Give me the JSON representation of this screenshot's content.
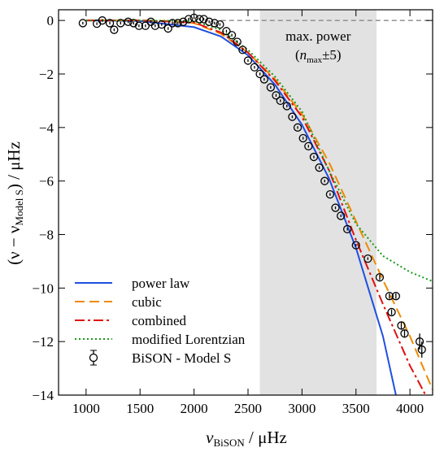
{
  "chart_data": {
    "type": "line",
    "xlabel": {
      "main": "ν",
      "sub": "BiSON",
      "rest": " / μHz"
    },
    "ylabel": {
      "start": "(ν − ν",
      "sub": "Model S",
      "rest": ") / μHz"
    },
    "xlim": [
      745,
      4210
    ],
    "ylim": [
      -14,
      0.4
    ],
    "xticks": [
      1000,
      1500,
      2000,
      2500,
      3000,
      3500,
      4000
    ],
    "yticks": [
      {
        "value": 0,
        "label": "0"
      },
      {
        "value": -2,
        "label": "−2"
      },
      {
        "value": -4,
        "label": "−4"
      },
      {
        "value": -6,
        "label": "−6"
      },
      {
        "value": -8,
        "label": "−8"
      },
      {
        "value": -10,
        "label": "−10"
      },
      {
        "value": -12,
        "label": "−12"
      },
      {
        "value": -14,
        "label": "−14"
      }
    ],
    "shade": {
      "x": [
        2610,
        3690
      ],
      "color": "#e2e2e2"
    },
    "annotation": {
      "line1": "max. power",
      "open": "(",
      "main": "n",
      "sub": "max",
      "rest": "±5)"
    },
    "hline": {
      "y": 0,
      "x_start": 2250,
      "color": "#888888"
    },
    "legend": "lower left",
    "series": [
      {
        "name": "power law",
        "color": "#1f4fe0",
        "style": "solid",
        "x": [
          1000,
          1500,
          2000,
          2250,
          2500,
          2750,
          3000,
          3250,
          3500,
          3750,
          3870
        ],
        "values": [
          0,
          -0.02,
          -0.25,
          -0.6,
          -1.3,
          -2.4,
          -3.9,
          -5.9,
          -8.5,
          -11.8,
          -14
        ]
      },
      {
        "name": "cubic",
        "color": "#f08a00",
        "style": "dashed",
        "x": [
          1000,
          1500,
          1800,
          2000,
          2250,
          2500,
          2750,
          3000,
          3250,
          3500,
          3750,
          4000,
          4210
        ],
        "values": [
          0,
          0,
          -0.02,
          -0.1,
          -0.5,
          -1.2,
          -2.2,
          -3.5,
          -5.3,
          -7.5,
          -9.7,
          -11.8,
          -13.8
        ]
      },
      {
        "name": "combined",
        "color": "#e01010",
        "style": "dashdot",
        "x": [
          1000,
          1500,
          2000,
          2250,
          2500,
          2750,
          3000,
          3250,
          3500,
          3750,
          4000,
          4145
        ],
        "values": [
          0,
          0,
          -0.08,
          -0.45,
          -1.2,
          -2.25,
          -3.6,
          -5.6,
          -8.2,
          -10.6,
          -12.9,
          -14
        ]
      },
      {
        "name": "modified Lorentzian",
        "color": "#1a9a1a",
        "style": "dotted",
        "x": [
          1000,
          1500,
          2000,
          2250,
          2500,
          2750,
          3000,
          3250,
          3500,
          3750,
          4000,
          4210
        ],
        "values": [
          0,
          0,
          -0.02,
          -0.35,
          -1.1,
          -2.1,
          -3.4,
          -5.6,
          -7.6,
          -8.8,
          -9.4,
          -9.75
        ]
      },
      {
        "name": "BiSON - Model S",
        "color": "#000000",
        "style": "markers",
        "x": [
          970,
          1100,
          1150,
          1220,
          1260,
          1320,
          1390,
          1440,
          1490,
          1550,
          1600,
          1640,
          1700,
          1760,
          1800,
          1850,
          1900,
          1950,
          2000,
          2050,
          2090,
          2140,
          2190,
          2240,
          2300,
          2350,
          2400,
          2450,
          2500,
          2560,
          2610,
          2650,
          2710,
          2760,
          2800,
          2860,
          2910,
          2960,
          3010,
          3060,
          3110,
          3160,
          3210,
          3260,
          3310,
          3360,
          3420,
          3500,
          3610,
          3720,
          3810,
          3830,
          3870,
          3920,
          3950,
          4090,
          4110
        ],
        "values": [
          -0.1,
          -0.12,
          0,
          -0.1,
          -0.35,
          -0.1,
          -0.05,
          -0.1,
          -0.2,
          -0.2,
          -0.05,
          -0.2,
          -0.15,
          -0.3,
          -0.1,
          -0.1,
          -0.05,
          0.05,
          0.1,
          0.05,
          0.05,
          -0.05,
          -0.1,
          -0.15,
          -0.4,
          -0.55,
          -0.8,
          -1.1,
          -1.5,
          -1.75,
          -2.0,
          -2.2,
          -2.5,
          -2.8,
          -3.0,
          -3.2,
          -3.6,
          -4.0,
          -4.4,
          -4.7,
          -5.1,
          -5.5,
          -6.0,
          -6.5,
          -7.0,
          -7.3,
          -7.8,
          -8.4,
          -8.9,
          -9.6,
          -10.3,
          -10.9,
          -10.3,
          -11.4,
          -11.7,
          -12.0,
          -12.3
        ],
        "errors": [
          0.05,
          0.05,
          0.05,
          0.05,
          0.05,
          0.05,
          0.05,
          0.05,
          0.05,
          0.05,
          0.05,
          0.05,
          0.05,
          0.05,
          0.05,
          0.05,
          0.05,
          0.05,
          0.05,
          0.05,
          0.05,
          0.05,
          0.05,
          0.05,
          0.05,
          0.05,
          0.05,
          0.05,
          0.05,
          0.05,
          0.05,
          0.05,
          0.05,
          0.05,
          0.05,
          0.05,
          0.05,
          0.05,
          0.05,
          0.05,
          0.05,
          0.05,
          0.05,
          0.05,
          0.05,
          0.05,
          0.05,
          0.05,
          0.05,
          0.1,
          0.1,
          0.1,
          0.1,
          0.15,
          0.15,
          0.3,
          0.3
        ]
      }
    ]
  }
}
